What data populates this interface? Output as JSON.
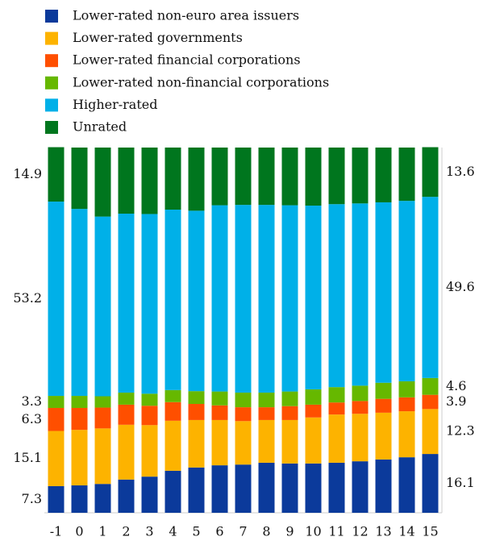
{
  "chart_data": {
    "type": "stacked-bar",
    "x": [
      -1,
      0,
      1,
      2,
      3,
      4,
      5,
      6,
      7,
      8,
      9,
      10,
      11,
      12,
      13,
      14,
      15
    ],
    "ylim": [
      0,
      100
    ],
    "series": [
      {
        "name": "Lower-rated non-euro area issuers",
        "color": "#0b3a9b",
        "values": [
          7.3,
          7.5,
          7.9,
          9.1,
          9.9,
          11.5,
          12.4,
          13.0,
          13.2,
          13.7,
          13.5,
          13.5,
          13.7,
          14.1,
          14.6,
          15.2,
          16.1
        ]
      },
      {
        "name": "Lower-rated governments",
        "color": "#fdb300",
        "values": [
          15.1,
          15.2,
          15.2,
          15.0,
          14.1,
          13.7,
          13.0,
          12.4,
          11.9,
          11.7,
          11.9,
          12.6,
          13.2,
          13.0,
          12.8,
          12.6,
          12.3
        ]
      },
      {
        "name": "Lower-rated financial corporations",
        "color": "#ff4f00",
        "values": [
          6.3,
          6.0,
          5.7,
          5.5,
          5.3,
          5.1,
          4.4,
          4.0,
          3.8,
          3.5,
          3.8,
          3.5,
          3.3,
          3.5,
          3.8,
          3.8,
          3.9
        ]
      },
      {
        "name": "Lower-rated non-financial corporations",
        "color": "#66b800",
        "values": [
          3.3,
          3.3,
          3.1,
          3.3,
          3.3,
          3.3,
          3.5,
          3.8,
          4.0,
          4.0,
          4.0,
          4.2,
          4.2,
          4.2,
          4.4,
          4.4,
          4.6
        ]
      },
      {
        "name": "Higher-rated",
        "color": "#00b0e8",
        "values": [
          53.2,
          51.2,
          49.2,
          49.0,
          49.2,
          49.4,
          49.4,
          51.0,
          51.4,
          51.4,
          51.0,
          50.3,
          50.1,
          49.9,
          49.4,
          49.4,
          49.6
        ]
      },
      {
        "name": "Unrated",
        "color": "#00761e",
        "values": [
          14.9,
          16.8,
          18.9,
          18.1,
          18.2,
          17.0,
          17.3,
          15.8,
          15.7,
          15.7,
          15.8,
          15.9,
          15.5,
          15.3,
          15.0,
          14.6,
          13.6
        ]
      }
    ]
  }
}
